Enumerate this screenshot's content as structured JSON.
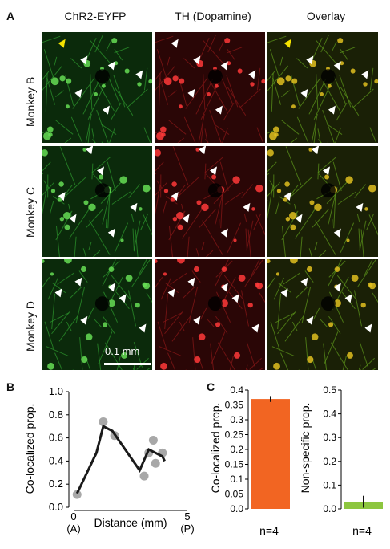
{
  "panel_a": {
    "letter": "A",
    "columns": [
      "ChR2-EYFP",
      "TH (Dopamine)",
      "Overlay"
    ],
    "rows": [
      "Monkey B",
      "Monkey C",
      "Monkey D"
    ],
    "scale_bar": "0.1 mm",
    "colors": {
      "green": "#3fbf3f",
      "red": "#e02020",
      "overlay": "#b0a020"
    }
  },
  "panel_b": {
    "letter": "B",
    "ylabel": "Co-localized prop.",
    "xlabel": "Distance (mm)",
    "x_tick_labels": [
      "0",
      "5"
    ],
    "x_end_labels": [
      "(A)",
      "(P)"
    ],
    "y_tick_labels": [
      "0.0",
      "0.2",
      "0.4",
      "0.6",
      "0.8",
      "1.0"
    ]
  },
  "panel_c": {
    "letter": "C",
    "left": {
      "ylabel": "Co-localized prop.",
      "n_label": "n=4",
      "y_tick_labels": [
        "0.0",
        "0.05",
        "0.1",
        "0.15",
        "0.2",
        "0.25",
        "0.3",
        "0.35",
        "0.4"
      ]
    },
    "right": {
      "ylabel": "Non-specific prop.",
      "n_label": "n=4",
      "y_tick_labels": [
        "0.0",
        "0.1",
        "0.2",
        "0.3",
        "0.4",
        "0.5"
      ]
    }
  },
  "chart_data": [
    {
      "type": "scatter",
      "ylabel": "Co-localized prop.",
      "xlabel": "Distance (mm)",
      "xlim": [
        0,
        5
      ],
      "ylim": [
        0,
        1.0
      ],
      "points": [
        {
          "x": 0.15,
          "y": 0.11
        },
        {
          "x": 1.3,
          "y": 0.74
        },
        {
          "x": 1.8,
          "y": 0.62
        },
        {
          "x": 3.1,
          "y": 0.27
        },
        {
          "x": 3.3,
          "y": 0.47
        },
        {
          "x": 3.5,
          "y": 0.58
        },
        {
          "x": 3.6,
          "y": 0.38
        },
        {
          "x": 3.9,
          "y": 0.47
        }
      ],
      "line": [
        {
          "x": 0.15,
          "y": 0.12
        },
        {
          "x": 1.0,
          "y": 0.47
        },
        {
          "x": 1.3,
          "y": 0.7
        },
        {
          "x": 1.7,
          "y": 0.66
        },
        {
          "x": 2.9,
          "y": 0.32
        },
        {
          "x": 3.3,
          "y": 0.5
        },
        {
          "x": 3.9,
          "y": 0.44
        },
        {
          "x": 4.0,
          "y": 0.4
        }
      ],
      "colors": {
        "points": "#a8a8a8",
        "line": "#1a1a1a"
      }
    },
    {
      "type": "bar",
      "ylabel": "Co-localized prop.",
      "categories": [
        "n=4"
      ],
      "values": [
        0.37
      ],
      "error": [
        0.01
      ],
      "ylim": [
        0,
        0.4
      ],
      "color": "#f26522"
    },
    {
      "type": "bar",
      "ylabel": "Non-specific prop.",
      "categories": [
        "n=4"
      ],
      "values": [
        0.03
      ],
      "error": [
        0.025
      ],
      "ylim": [
        0,
        0.5
      ],
      "color": "#8dc63f"
    }
  ]
}
